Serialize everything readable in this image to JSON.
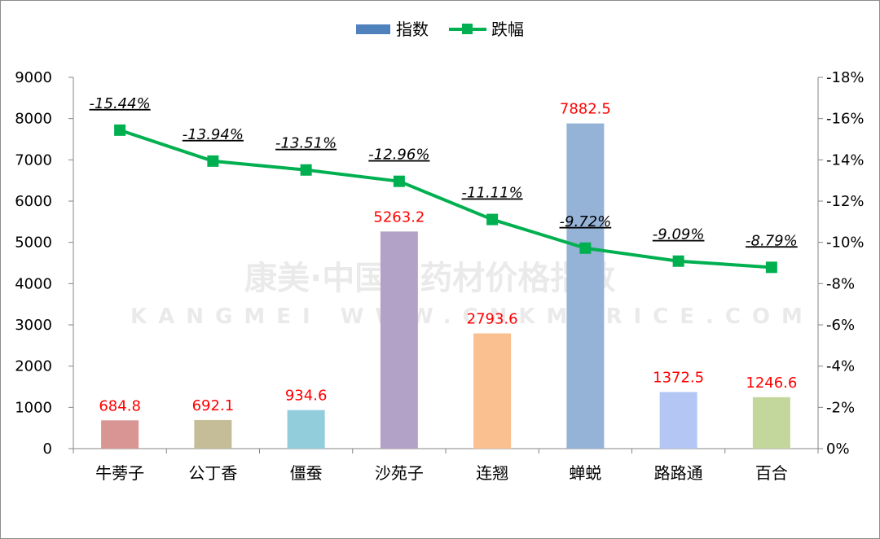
{
  "chart_data": {
    "type": "bar",
    "categories": [
      "牛蒡子",
      "公丁香",
      "僵蚕",
      "沙苑子",
      "连翘",
      "蝉蜕",
      "路路通",
      "百合"
    ],
    "series": [
      {
        "name": "指数",
        "type": "bar",
        "axis": "left",
        "values": [
          684.8,
          692.1,
          934.6,
          5263.2,
          2793.6,
          7882.5,
          1372.5,
          1246.6
        ],
        "labels": [
          "684.8",
          "692.1",
          "934.6",
          "5263.2",
          "2793.6",
          "7882.5",
          "1372.5",
          "1246.6"
        ],
        "colors": [
          "#d99594",
          "#c4bd97",
          "#92cddc",
          "#b3a2c7",
          "#fac090",
          "#95b3d7",
          "#b4c7f4",
          "#c3d69b"
        ]
      },
      {
        "name": "跌幅",
        "type": "line",
        "axis": "right",
        "values": [
          -15.44,
          -13.94,
          -13.51,
          -12.96,
          -11.11,
          -9.72,
          -9.09,
          -8.79
        ],
        "labels": [
          "-15.44%",
          "-13.94%",
          "-13.51%",
          "-12.96%",
          "-11.11%",
          "-9.72%",
          "-9.09%",
          "-8.79%"
        ],
        "color": "#00b050"
      }
    ],
    "ylim": [
      0,
      9000
    ],
    "y_ticks": [
      "0",
      "1000",
      "2000",
      "3000",
      "4000",
      "5000",
      "6000",
      "7000",
      "8000",
      "9000"
    ],
    "y2lim": [
      0,
      -18
    ],
    "y2_ticks": [
      "0%",
      "-2%",
      "-4%",
      "-6%",
      "-8%",
      "-10%",
      "-12%",
      "-14%",
      "-16%",
      "-18%"
    ],
    "legend_position": "top",
    "grid": false
  },
  "legend": {
    "bar_label": "指数",
    "line_label": "跌幅"
  },
  "watermark": {
    "main": "康美·中国中药材价格指数",
    "sub": "KANGMEI WWW.CNKMPRICE.COM"
  }
}
